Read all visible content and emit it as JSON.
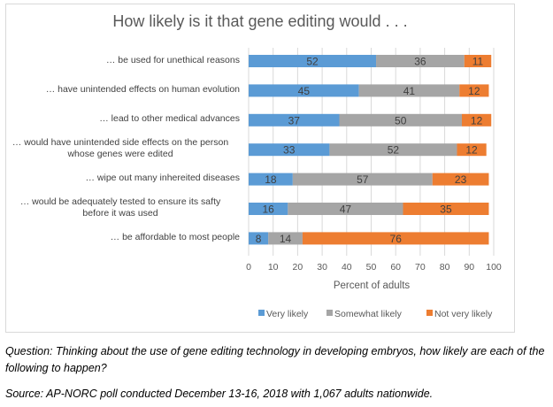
{
  "chart_data": {
    "type": "bar",
    "orientation": "horizontal",
    "stacked": true,
    "title": "How likely is it that gene editing would . . .",
    "xlabel": "Percent of adults",
    "ylabel": "",
    "xlim": [
      0,
      100
    ],
    "xticks": [
      0,
      10,
      20,
      30,
      40,
      50,
      60,
      70,
      80,
      90,
      100
    ],
    "grid": true,
    "legend_position": "bottom",
    "categories": [
      "… be used for unethical reasons",
      "… have unintended effects on human evolution",
      "… lead to other medical advances",
      "… would have unintended side effects on the person whose genes were edited",
      "… wipe out many inhereited diseases",
      "… would be adequately tested to ensure its safty before it was used",
      "… be affordable to most people"
    ],
    "category_lines": [
      [
        "… be used for unethical reasons"
      ],
      [
        "… have unintended effects on human evolution"
      ],
      [
        "… lead to other medical advances"
      ],
      [
        "… would have unintended side effects on the person",
        "whose genes were edited"
      ],
      [
        "… wipe out many inhereited diseases"
      ],
      [
        "… would be adequately tested to ensure its safty",
        "before it was used"
      ],
      [
        "… be affordable to most people"
      ]
    ],
    "series": [
      {
        "name": "Very likely",
        "color": "#5b9bd5",
        "values": [
          52,
          45,
          37,
          33,
          18,
          16,
          8
        ]
      },
      {
        "name": "Somewhat likely",
        "color": "#a5a5a5",
        "values": [
          36,
          41,
          50,
          52,
          57,
          47,
          14
        ]
      },
      {
        "name": "Not very likely",
        "color": "#ed7d31",
        "values": [
          11,
          12,
          12,
          12,
          23,
          35,
          76
        ]
      }
    ]
  },
  "notes": {
    "question": "Question: Thinking about the use of gene editing technology in developing embryos, how likely are each of the following to happen?",
    "source": "Source: AP-NORC poll conducted December 13-16, 2018 with 1,067 adults nationwide."
  },
  "colors": {
    "gridline": "#d9d9d9",
    "label_text": "#404040",
    "title_text": "#595959"
  }
}
